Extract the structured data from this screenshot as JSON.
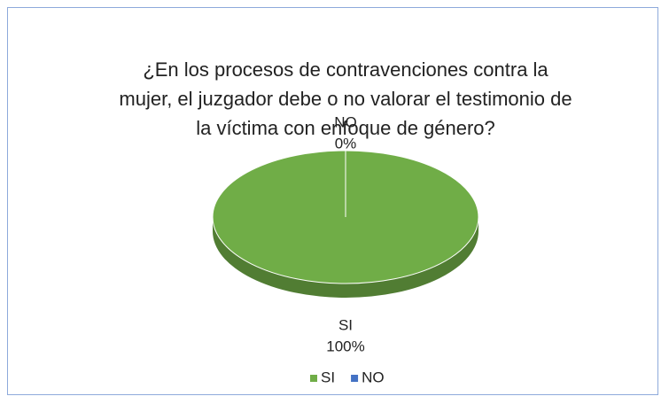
{
  "chart_data": {
    "type": "pie",
    "title": "¿En los procesos de contravenciones contra la mujer, el juzgador debe o no valorar el testimonio de la víctima con enfoque de género?",
    "categories": [
      "SI",
      "NO"
    ],
    "values": [
      100,
      0
    ],
    "value_labels": [
      "100%",
      "0%"
    ],
    "colors": [
      "#70ad47",
      "#4472c4"
    ],
    "legend": "bottom"
  }
}
